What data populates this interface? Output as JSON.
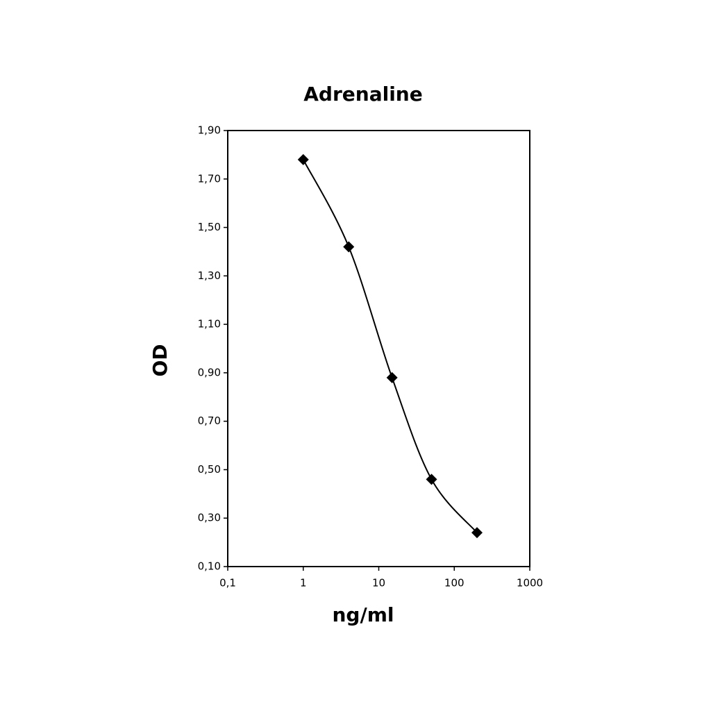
{
  "chart_data": {
    "type": "line",
    "title": "Adrenaline",
    "x_label": "ng/ml",
    "y_label": "OD",
    "x": [
      1,
      4,
      15,
      50,
      200
    ],
    "series": [
      {
        "values": [
          1.78,
          1.42,
          0.88,
          0.46,
          0.24
        ],
        "color": "#000000"
      }
    ],
    "xlim": [
      0.1,
      1000
    ],
    "xscale": "log",
    "xticks": [
      {
        "value": 0.1,
        "label": "0,1"
      },
      1,
      10,
      100,
      1000
    ],
    "ylim": [
      0.1,
      1.9
    ],
    "yticks": [
      {
        "value": 0.1,
        "label": "0,10"
      },
      {
        "value": 0.3,
        "label": "0,30"
      },
      {
        "value": 0.5,
        "label": "0,50"
      },
      {
        "value": 0.7,
        "label": "0,70"
      },
      {
        "value": 0.9,
        "label": "0,90"
      },
      {
        "value": 1.1,
        "label": "1,10"
      },
      {
        "value": 1.3,
        "label": "1,30"
      },
      {
        "value": 1.5,
        "label": "1,50"
      },
      {
        "value": 1.7,
        "label": "1,70"
      },
      {
        "value": 1.9,
        "label": "1,90"
      }
    ],
    "grid": false
  }
}
